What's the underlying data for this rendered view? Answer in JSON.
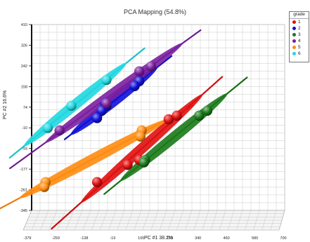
{
  "chart_data": {
    "type": "scatter",
    "title": "PCA Mapping (54.8%)",
    "ylabel": "PC #2 16.6%",
    "xlabel": "PC #1 38.2%",
    "y_ticks": [
      "410",
      "326",
      "242",
      "158",
      "74",
      "-10",
      "-93",
      "-177",
      "-261",
      "-345"
    ],
    "x_ticks": [
      "-379",
      "-259",
      "-138",
      "-19",
      "100",
      "220",
      "340",
      "460",
      "580",
      "700"
    ],
    "ylim": [
      -345,
      410
    ],
    "xlim": [
      -379,
      700
    ],
    "legend": {
      "title": "grade",
      "entries": [
        {
          "label": "1",
          "color": "#e01010"
        },
        {
          "label": "2",
          "color": "#1010d8"
        },
        {
          "label": "3",
          "color": "#1a7a1a"
        },
        {
          "label": "4",
          "color": "#7a1fa0"
        },
        {
          "label": "5",
          "color": "#ff8c10"
        },
        {
          "label": "6",
          "color": "#20d8e0"
        }
      ]
    },
    "series": [
      {
        "name": "1",
        "color": "#e01010",
        "points": [
          [
            240,
            40
          ],
          [
            205,
            25
          ],
          [
            80,
            -140
          ],
          [
            30,
            -160
          ],
          [
            -100,
            -230
          ]
        ]
      },
      {
        "name": "2",
        "color": "#1010d8",
        "points": [
          [
            80,
            180
          ],
          [
            60,
            160
          ],
          [
            -65,
            90
          ],
          [
            -60,
            80
          ],
          [
            -80,
            60
          ],
          [
            -100,
            30
          ]
        ]
      },
      {
        "name": "3",
        "color": "#1a7a1a",
        "points": [
          [
            370,
            60
          ],
          [
            335,
            40
          ],
          [
            105,
            -140
          ],
          [
            100,
            -150
          ]
        ]
      },
      {
        "name": "4",
        "color": "#7a1fa0",
        "points": [
          [
            130,
            240
          ],
          [
            80,
            220
          ],
          [
            -60,
            90
          ],
          [
            -260,
            -20
          ]
        ]
      },
      {
        "name": "5",
        "color": "#ff8c10",
        "points": [
          [
            90,
            -20
          ],
          [
            85,
            -45
          ],
          [
            -320,
            -230
          ],
          [
            -325,
            -250
          ]
        ]
      },
      {
        "name": "6",
        "color": "#20d8e0",
        "points": [
          [
            -60,
            185
          ],
          [
            -210,
            80
          ],
          [
            -310,
            -10
          ]
        ]
      }
    ]
  }
}
